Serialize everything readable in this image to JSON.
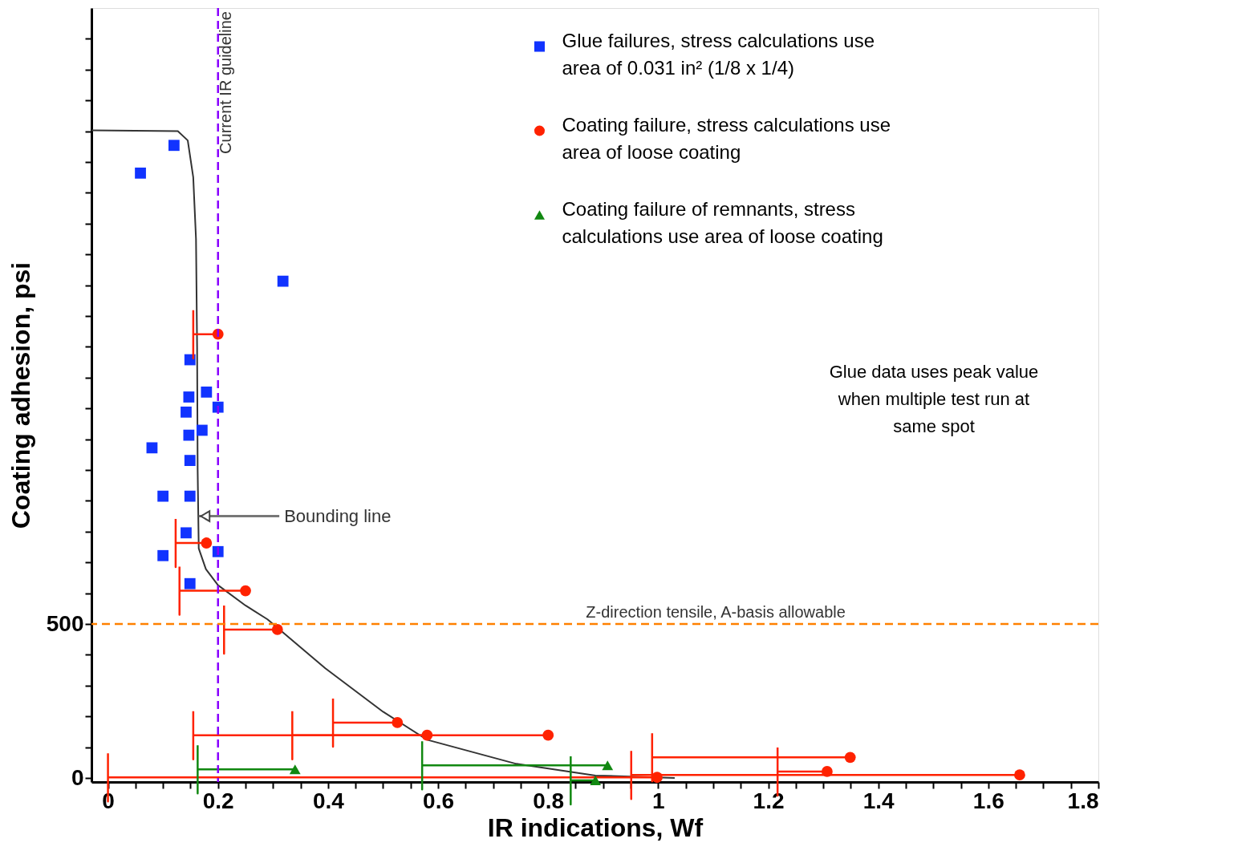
{
  "chart_data": {
    "type": "scatter",
    "xlabel": "IR indications, Wf",
    "ylabel": "Coating adhesion, psi",
    "xlim": [
      -0.03,
      1.8
    ],
    "ylim": [
      -13,
      2500
    ],
    "xticks": [
      0,
      {
        "value": 0.05,
        "label": null
      },
      {
        "value": 0.1,
        "label": null
      },
      {
        "value": 0.15,
        "label": null
      },
      0.2,
      {
        "value": 0.25,
        "label": null
      },
      {
        "value": 0.3,
        "label": null
      },
      {
        "value": 0.35,
        "label": null
      },
      0.4,
      {
        "value": 0.45,
        "label": null
      },
      {
        "value": 0.5,
        "label": null
      },
      {
        "value": 0.55,
        "label": null
      },
      0.6,
      {
        "value": 0.65,
        "label": null
      },
      {
        "value": 0.7,
        "label": null
      },
      {
        "value": 0.75,
        "label": null
      },
      0.8,
      {
        "value": 0.85,
        "label": null
      },
      {
        "value": 0.9,
        "label": null
      },
      {
        "value": 0.95,
        "label": null
      },
      1,
      {
        "value": 1.05,
        "label": null
      },
      {
        "value": 1.1,
        "label": null
      },
      {
        "value": 1.15,
        "label": null
      },
      1.2,
      {
        "value": 1.25,
        "label": null
      },
      {
        "value": 1.3,
        "label": null
      },
      {
        "value": 1.35,
        "label": null
      },
      1.4,
      {
        "value": 1.45,
        "label": null
      },
      {
        "value": 1.5,
        "label": null
      },
      {
        "value": 1.55,
        "label": null
      },
      1.6,
      {
        "value": 1.65,
        "label": null
      },
      {
        "value": 1.7,
        "label": null
      },
      {
        "value": 1.75,
        "label": null
      },
      1.8
    ],
    "yticks": [
      0,
      {
        "value": 100,
        "label": null
      },
      {
        "value": 200,
        "label": null
      },
      {
        "value": 300,
        "label": null
      },
      {
        "value": 400,
        "label": null
      },
      500,
      {
        "value": 600,
        "label": null
      },
      {
        "value": 700,
        "label": null
      },
      {
        "value": 800,
        "label": null
      },
      {
        "value": 900,
        "label": null
      },
      {
        "value": 1000,
        "label": null
      },
      {
        "value": 1100,
        "label": null
      },
      {
        "value": 1200,
        "label": null
      },
      {
        "value": 1300,
        "label": null
      },
      {
        "value": 1400,
        "label": null
      },
      {
        "value": 1500,
        "label": null
      },
      {
        "value": 1600,
        "label": null
      },
      {
        "value": 1700,
        "label": null
      },
      {
        "value": 1800,
        "label": null
      },
      {
        "value": 1900,
        "label": null
      },
      {
        "value": 2000,
        "label": null
      },
      {
        "value": 2100,
        "label": null
      },
      {
        "value": 2200,
        "label": null
      },
      {
        "value": 2300,
        "label": null
      },
      {
        "value": 2400,
        "label": null
      }
    ],
    "grid": false,
    "legend": "top right",
    "series": [
      {
        "type": "line",
        "color": "#333333",
        "marker": "none",
        "line_style": "solid",
        "x": [
          -0.03,
          0.127,
          0.145,
          0.155,
          0.16,
          0.162,
          0.163,
          0.165,
          0.178,
          0.2,
          0.25,
          0.29,
          0.395,
          0.5,
          0.58,
          0.742,
          0.886,
          1.03
        ],
        "values": [
          2103,
          2100,
          2070,
          1950,
          1750,
          1400,
          1000,
          745,
          678,
          626,
          560,
          515,
          356,
          215,
          124,
          46,
          8,
          0
        ]
      },
      {
        "name": "Glue failures, stress calculations use area of 0.031 in² (1/8 x 1/4)",
        "color": "#1133ff",
        "marker": "square",
        "x": [
          0.12,
          0.059,
          0.318,
          0.149,
          0.147,
          0.179,
          0.142,
          0.2,
          0.171,
          0.147,
          0.08,
          0.149,
          0.1,
          0.149,
          0.142,
          0.1,
          0.2,
          0.149
        ],
        "values": [
          2054,
          1964,
          1613,
          1358,
          1237,
          1253,
          1188,
          1204,
          1129,
          1113,
          1072,
          1031,
          915,
          915,
          796,
          722,
          735,
          631
        ]
      },
      {
        "name": "Coating failure, stress calculations use area of loose coating",
        "color": "#ff2200",
        "marker": "circle",
        "x": [
          0.2,
          0.179,
          0.25,
          0.308,
          0.526,
          0.58,
          0.8,
          1.349,
          1.307,
          1.657,
          0.998
        ],
        "values": [
          1441,
          763,
          608,
          482,
          180,
          139,
          139,
          67,
          21,
          10,
          2
        ],
        "xerrors": [
          [
            0.155,
            0.2
          ],
          [
            0.123,
            0.179
          ],
          [
            0.13,
            0.25
          ],
          [
            0.211,
            0.308
          ],
          [
            0.409,
            0.526
          ],
          [
            0.335,
            0.58
          ],
          [
            0.155,
            0.8
          ],
          [
            0.989,
            1.349
          ],
          [
            1.217,
            1.307
          ],
          [
            0.951,
            1.657
          ],
          [
            0,
            0.998
          ]
        ]
      },
      {
        "name": "Coating failure of remnants, stress calculations use area of loose coating",
        "color": "#118811",
        "marker": "triangle",
        "x": [
          0.34,
          0.908,
          0.886
        ],
        "values": [
          28,
          41,
          -8
        ],
        "xerrors": [
          [
            0.163,
            0.34
          ],
          [
            0.571,
            0.908
          ],
          [
            0.841,
            0.886
          ]
        ]
      }
    ],
    "ref_lines": [
      {
        "axis": "x",
        "value": 0.2,
        "label": "Current IR guideline",
        "color": "#8800ff",
        "line_style": "dashed"
      },
      {
        "axis": "y",
        "value": 500,
        "label": "Z-direction tensile, A-basis allowable",
        "color": "#ff8000",
        "line_style": "dashed"
      }
    ],
    "annotations": [
      {
        "text": "Bounding line",
        "x": 0.165,
        "y": 850
      },
      "Glue data uses peak value when multiple test run at same spot"
    ]
  }
}
